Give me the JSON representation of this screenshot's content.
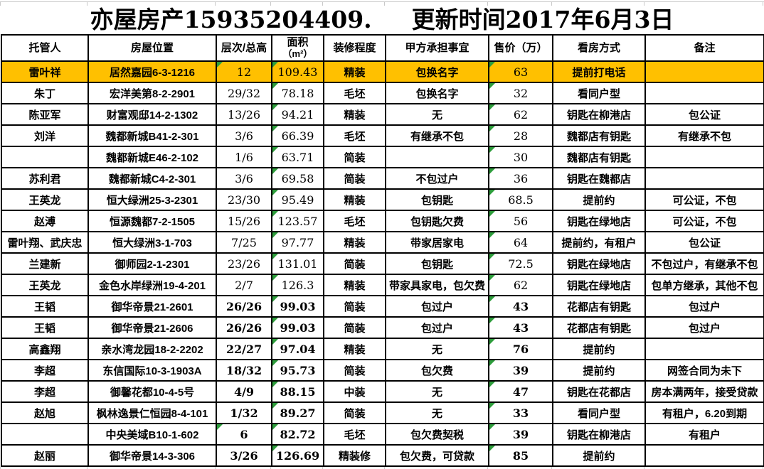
{
  "title": "亦屋房产15935204409.　  更新时间2017年6月3日",
  "colors": {
    "highlight": "#FFC000",
    "marker": "#2E9E3C",
    "gridline": "#C9C9C9",
    "border": "#000000"
  },
  "table": {
    "columns": [
      {
        "key": "trustee",
        "label": "托管人"
      },
      {
        "key": "location",
        "label": "房屋位置"
      },
      {
        "key": "floor",
        "label": "层次/总高"
      },
      {
        "key": "area",
        "label": "面积",
        "label2": "（m²）"
      },
      {
        "key": "decoration",
        "label": "装修程度"
      },
      {
        "key": "party_a",
        "label": "甲方承担事宜"
      },
      {
        "key": "price",
        "label": "售价（万）"
      },
      {
        "key": "viewing",
        "label": "看房方式"
      },
      {
        "key": "remarks",
        "label": "备注"
      }
    ],
    "rows": [
      {
        "trustee": "雷叶祥",
        "location": "居然嘉园6-3-1216",
        "floor": "12",
        "area": "109.43",
        "decoration": "精装",
        "party_a": "包换名字",
        "price": "63",
        "viewing": "提前打电话",
        "remarks": "",
        "highlight": true,
        "markers": [
          "floor",
          "area",
          "price"
        ]
      },
      {
        "trustee": "朱丁",
        "location": "宏洋美第8-2-2901",
        "floor": "29/32",
        "area": "78.18",
        "decoration": "毛坯",
        "party_a": "包换名字",
        "price": "32",
        "viewing": "看同户型",
        "remarks": "",
        "markers": [
          "area",
          "price"
        ]
      },
      {
        "trustee": "陈亚军",
        "location": "财富观邸14-2-1302",
        "floor": "13/26",
        "area": "94.21",
        "decoration": "精装",
        "party_a": "无",
        "price": "62",
        "viewing": "钥匙在柳港店",
        "remarks": "包公证",
        "markers": [
          "area",
          "price"
        ]
      },
      {
        "trustee": "刘洋",
        "location": "魏都新城B41-2-301",
        "floor": "3/6",
        "area": "66.39",
        "decoration": "毛坯",
        "party_a": "有继承不包",
        "price": "28",
        "viewing": "魏都店有钥匙",
        "remarks": "有继承不包",
        "markers": [
          "area",
          "price"
        ]
      },
      {
        "trustee": "",
        "location": "魏都新城E46-2-102",
        "floor": "1/6",
        "area": "63.71",
        "decoration": "简装",
        "party_a": "",
        "price": "30",
        "viewing": "魏都店有钥匙",
        "remarks": "",
        "markers": [
          "area",
          "price"
        ]
      },
      {
        "trustee": "苏利君",
        "location": "魏都新城C4-2-301",
        "floor": "3/6",
        "area": "69.58",
        "decoration": "简装",
        "party_a": "不包过户",
        "price": "36",
        "viewing": "钥匙在魏都店",
        "remarks": "",
        "markers": [
          "area",
          "price"
        ]
      },
      {
        "trustee": "王英龙",
        "location": "恒大绿洲25-3-2301",
        "floor": "23/30",
        "area": "95.49",
        "decoration": "精装",
        "party_a": "包钥匙",
        "price": "68.5",
        "viewing": "提前约",
        "remarks": "可公证，不包",
        "markers": [
          "area",
          "price"
        ]
      },
      {
        "trustee": "赵溥",
        "location": "恒源魏都7-2-1505",
        "floor": "15/26",
        "area": "123.57",
        "decoration": "毛坯",
        "party_a": "包钥匙欠费",
        "price": "56",
        "viewing": "钥匙在绿地店",
        "remarks": "可公证，不包",
        "markers": [
          "area",
          "price"
        ]
      },
      {
        "trustee": "雷叶翔、武庆忠",
        "location": "恒大绿洲3-1-703",
        "floor": "7/25",
        "area": "97.77",
        "decoration": "精装",
        "party_a": "带家居家电",
        "price": "64",
        "viewing": "提前约，有租户",
        "remarks": "包公证",
        "markers": [
          "area",
          "price"
        ]
      },
      {
        "trustee": "兰建新",
        "location": "御师园2-1-2301",
        "floor": "23/26",
        "area": "131.01",
        "decoration": "简装",
        "party_a": "包钥匙",
        "price": "72.5",
        "viewing": "钥匙在绿地店",
        "remarks": "不包过户，有继承不包",
        "markers": [
          "area",
          "price"
        ]
      },
      {
        "trustee": "王英龙",
        "location": "金色水岸绿洲19-4-201",
        "floor": "2/7",
        "area": "126.3",
        "decoration": "精装",
        "party_a": "带家具家电，包欠费",
        "price": "62",
        "viewing": "钥匙在绿地店",
        "remarks": "包单方继承，其他不包",
        "markers": [
          "area",
          "price"
        ]
      },
      {
        "trustee": "王韬",
        "location": "御华帝景21-2601",
        "floor": "26/26",
        "area": "99.03",
        "decoration": "简装",
        "party_a": "包过户",
        "price": "43",
        "viewing": "花都店有钥匙",
        "remarks": "包过户",
        "markers": [
          "area",
          "price"
        ]
      },
      {
        "trustee": "王韬",
        "location": "御华帝景21-2606",
        "floor": "26/26",
        "area": "99.03",
        "decoration": "简装",
        "party_a": "包过户",
        "price": "43",
        "viewing": "花都店有钥匙",
        "remarks": "包过户",
        "markers": [
          "area",
          "price"
        ]
      },
      {
        "trustee": "高鑫翔",
        "location": "亲水湾龙园18-2-2202",
        "floor": "22/27",
        "area": "97.04",
        "decoration": "精装",
        "party_a": "无",
        "price": "76",
        "viewing": "提前约",
        "remarks": "",
        "markers": [
          "area",
          "price"
        ]
      },
      {
        "trustee": "李超",
        "location": "东信国际10-3-1903A",
        "floor": "18/32",
        "area": "95.73",
        "decoration": "简装",
        "party_a": "包欠费",
        "price": "39",
        "viewing": "提前约",
        "remarks": "网签合同为未下",
        "markers": [
          "area",
          "price"
        ]
      },
      {
        "trustee": "李超",
        "location": "御馨花都10-4-5号",
        "floor": "4/9",
        "area": "88.15",
        "decoration": "中装",
        "party_a": "无",
        "price": "47",
        "viewing": "钥匙在花都店",
        "remarks": "房本满两年，接受贷款",
        "markers": [
          "area",
          "price"
        ]
      },
      {
        "trustee": "赵旭",
        "location": "枫林逸景仁恒园8-4-101",
        "floor": "1/32",
        "area": "89.27",
        "decoration": "简装",
        "party_a": "无",
        "price": "33",
        "viewing": "看同户型",
        "remarks": "有租户，6.20到期",
        "markers": [
          "area",
          "price"
        ]
      },
      {
        "trustee": "",
        "location": "中央美域B10-1-602",
        "floor": "6",
        "area": "82.72",
        "decoration": "毛坯",
        "party_a": "包欠费契税",
        "price": "39",
        "viewing": "钥匙在柳港店",
        "remarks": "有租户",
        "markers": [
          "floor",
          "area",
          "price"
        ]
      },
      {
        "trustee": "赵丽",
        "location": "御华帝景14-3-306",
        "floor": "3/26",
        "area": "126.69",
        "decoration": "精装修",
        "party_a": "包欠费，可贷款",
        "price": "85",
        "viewing": "提前约",
        "remarks": "",
        "markers": [
          "area",
          "price"
        ]
      }
    ]
  }
}
